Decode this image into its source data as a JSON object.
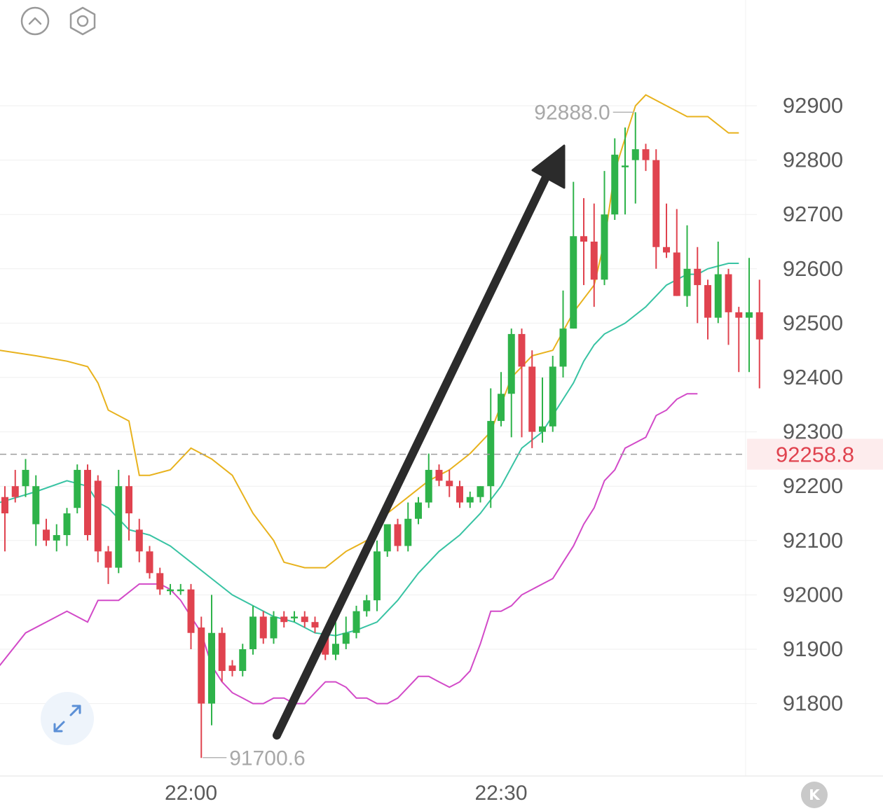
{
  "toolbar": {
    "icons": [
      "chevron-up-icon",
      "hexagon-settings-icon"
    ]
  },
  "expand": {
    "icon": "expand-arrows-icon"
  },
  "k_badge": {
    "label": "K"
  },
  "current_price_label": "92258.8",
  "colors": {
    "up": "#2eb34a",
    "down": "#e0434f",
    "upper_band": "#e8b21d",
    "middle_band": "#38c3a3",
    "lower_band": "#d24ac8",
    "current_price": "#e0434f",
    "axis_text": "#5a5a5a",
    "annotation_arrow": "#2b2b2b"
  },
  "chart_data": {
    "type": "candlestick",
    "y_axis_ticks": [
      "92900",
      "92800",
      "92700",
      "92600",
      "92500",
      "92400",
      "92300",
      "92200",
      "92100",
      "92000",
      "91900",
      "91800"
    ],
    "ylim": [
      91700,
      92900
    ],
    "x_axis_ticks": [
      {
        "label": "22:00",
        "index": 18
      },
      {
        "label": "22:30",
        "index": 48
      }
    ],
    "current_price": 92258.8,
    "high_marker": {
      "label": "92888.0",
      "value": 92888.0,
      "index": 61
    },
    "low_marker": {
      "label": "91700.6",
      "value": 91700.6,
      "index": 19
    },
    "candles": [
      [
        92180,
        92150,
        92200,
        92080
      ],
      [
        92200,
        92180,
        92230,
        92170
      ],
      [
        92200,
        92230,
        92250,
        92180
      ],
      [
        92130,
        92200,
        92220,
        92090
      ],
      [
        92120,
        92100,
        92140,
        92090
      ],
      [
        92100,
        92110,
        92130,
        92080
      ],
      [
        92110,
        92150,
        92160,
        92090
      ],
      [
        92160,
        92230,
        92240,
        92150
      ],
      [
        92230,
        92110,
        92240,
        92100
      ],
      [
        92210,
        92080,
        92220,
        92060
      ],
      [
        92080,
        92050,
        92090,
        92020
      ],
      [
        92050,
        92200,
        92230,
        92040
      ],
      [
        92200,
        92150,
        92220,
        92100
      ],
      [
        92120,
        92080,
        92140,
        92060
      ],
      [
        92080,
        92040,
        92090,
        92030
      ],
      [
        92040,
        92010,
        92050,
        92000
      ],
      [
        92010,
        92010,
        92020,
        92000
      ],
      [
        92010,
        92010,
        92020,
        92000
      ],
      [
        92010,
        91930,
        92020,
        91900
      ],
      [
        91940,
        91800,
        91960,
        91700
      ],
      [
        91800,
        91930,
        92000,
        91760
      ],
      [
        91930,
        91860,
        91940,
        91840
      ],
      [
        91870,
        91860,
        91880,
        91850
      ],
      [
        91860,
        91900,
        91910,
        91850
      ],
      [
        91900,
        91960,
        91980,
        91890
      ],
      [
        91960,
        91920,
        91970,
        91910
      ],
      [
        91920,
        91960,
        91970,
        91910
      ],
      [
        91960,
        91950,
        91970,
        91940
      ],
      [
        91960,
        91960,
        91970,
        91950
      ],
      [
        91960,
        91950,
        91970,
        91940
      ],
      [
        91950,
        91940,
        91960,
        91930
      ],
      [
        91930,
        91890,
        91940,
        91880
      ],
      [
        91890,
        91910,
        91950,
        91880
      ],
      [
        91910,
        91930,
        91960,
        91900
      ],
      [
        91930,
        91970,
        91980,
        91920
      ],
      [
        91970,
        91990,
        92000,
        91960
      ],
      [
        91990,
        92080,
        92100,
        91970
      ],
      [
        92080,
        92130,
        92130,
        92070
      ],
      [
        92130,
        92090,
        92140,
        92080
      ],
      [
        92090,
        92140,
        92170,
        92080
      ],
      [
        92140,
        92170,
        92180,
        92130
      ],
      [
        92170,
        92230,
        92260,
        92160
      ],
      [
        92230,
        92210,
        92240,
        92200
      ],
      [
        92210,
        92200,
        92230,
        92180
      ],
      [
        92200,
        92170,
        92210,
        92160
      ],
      [
        92170,
        92180,
        92190,
        92160
      ],
      [
        92180,
        92200,
        92200,
        92170
      ],
      [
        92200,
        92320,
        92380,
        92160
      ],
      [
        92320,
        92370,
        92410,
        92310
      ],
      [
        92370,
        92480,
        92490,
        92290
      ],
      [
        92480,
        92420,
        92490,
        92290
      ],
      [
        92420,
        92300,
        92450,
        92270
      ],
      [
        92300,
        92310,
        92400,
        92280
      ],
      [
        92310,
        92420,
        92440,
        92300
      ],
      [
        92420,
        92490,
        92560,
        92400
      ],
      [
        92490,
        92660,
        92760,
        92490
      ],
      [
        92660,
        92650,
        92730,
        92570
      ],
      [
        92650,
        92580,
        92720,
        92530
      ],
      [
        92580,
        92700,
        92780,
        92570
      ],
      [
        92700,
        92810,
        92840,
        92690
      ],
      [
        92790,
        92790,
        92860,
        92700
      ],
      [
        92800,
        92820,
        92888,
        92720
      ],
      [
        92820,
        92800,
        92830,
        92780
      ],
      [
        92800,
        92640,
        92820,
        92600
      ],
      [
        92640,
        92630,
        92720,
        92620
      ],
      [
        92630,
        92550,
        92710,
        92550
      ],
      [
        92550,
        92600,
        92680,
        92530
      ],
      [
        92600,
        92570,
        92640,
        92500
      ],
      [
        92570,
        92510,
        92580,
        92470
      ],
      [
        92510,
        92590,
        92650,
        92500
      ],
      [
        92590,
        92520,
        92600,
        92460
      ],
      [
        92520,
        92510,
        92530,
        92410
      ],
      [
        92510,
        92520,
        92620,
        92410
      ],
      [
        92520,
        92470,
        92580,
        92380
      ]
    ],
    "bands": {
      "upper": [
        [
          -0.5,
          92450
        ],
        [
          3,
          92440
        ],
        [
          6,
          92430
        ],
        [
          8,
          92420
        ],
        [
          9,
          92390
        ],
        [
          10,
          92340
        ],
        [
          12,
          92320
        ],
        [
          13,
          92220
        ],
        [
          14,
          92220
        ],
        [
          16,
          92230
        ],
        [
          18,
          92270
        ],
        [
          20,
          92250
        ],
        [
          22,
          92220
        ],
        [
          24,
          92150
        ],
        [
          26,
          92100
        ],
        [
          27,
          92060
        ],
        [
          29,
          92050
        ],
        [
          31,
          92050
        ],
        [
          33,
          92080
        ],
        [
          35,
          92100
        ],
        [
          37,
          92150
        ],
        [
          39,
          92180
        ],
        [
          41,
          92210
        ],
        [
          43,
          92230
        ],
        [
          45,
          92260
        ],
        [
          47,
          92300
        ],
        [
          49,
          92400
        ],
        [
          51,
          92440
        ],
        [
          53,
          92450
        ],
        [
          55,
          92520
        ],
        [
          57,
          92570
        ],
        [
          58,
          92650
        ],
        [
          59,
          92780
        ],
        [
          60,
          92840
        ],
        [
          61,
          92900
        ],
        [
          62,
          92920
        ],
        [
          64,
          92900
        ],
        [
          66,
          92880
        ],
        [
          68,
          92880
        ],
        [
          70,
          92850
        ],
        [
          71,
          92850
        ]
      ],
      "middle": [
        [
          -0.5,
          92170
        ],
        [
          3,
          92190
        ],
        [
          6,
          92210
        ],
        [
          8,
          92200
        ],
        [
          9,
          92170
        ],
        [
          10,
          92160
        ],
        [
          12,
          92120
        ],
        [
          14,
          92110
        ],
        [
          16,
          92090
        ],
        [
          18,
          92060
        ],
        [
          20,
          92030
        ],
        [
          22,
          92000
        ],
        [
          24,
          91980
        ],
        [
          26,
          91960
        ],
        [
          28,
          91950
        ],
        [
          30,
          91930
        ],
        [
          32,
          91925
        ],
        [
          34,
          91935
        ],
        [
          36,
          91950
        ],
        [
          38,
          91990
        ],
        [
          40,
          92040
        ],
        [
          42,
          92080
        ],
        [
          44,
          92110
        ],
        [
          46,
          92150
        ],
        [
          48,
          92200
        ],
        [
          50,
          92270
        ],
        [
          52,
          92300
        ],
        [
          54,
          92360
        ],
        [
          55,
          92390
        ],
        [
          56,
          92430
        ],
        [
          57,
          92460
        ],
        [
          58,
          92480
        ],
        [
          60,
          92500
        ],
        [
          62,
          92530
        ],
        [
          64,
          92570
        ],
        [
          66,
          92590
        ],
        [
          67,
          92590
        ],
        [
          68,
          92600
        ],
        [
          70,
          92610
        ],
        [
          71,
          92610
        ]
      ],
      "lower": [
        [
          -0.5,
          91870
        ],
        [
          2,
          91930
        ],
        [
          4,
          91950
        ],
        [
          6,
          91970
        ],
        [
          8,
          91950
        ],
        [
          9,
          91990
        ],
        [
          11,
          91990
        ],
        [
          13,
          92020
        ],
        [
          15,
          92020
        ],
        [
          16,
          92010
        ],
        [
          17,
          91990
        ],
        [
          19,
          91930
        ],
        [
          20,
          91870
        ],
        [
          21,
          91840
        ],
        [
          22,
          91820
        ],
        [
          23,
          91810
        ],
        [
          24,
          91800
        ],
        [
          25,
          91800
        ],
        [
          26,
          91810
        ],
        [
          27,
          91810
        ],
        [
          28,
          91800
        ],
        [
          29,
          91800
        ],
        [
          30,
          91820
        ],
        [
          31,
          91840
        ],
        [
          32,
          91840
        ],
        [
          33,
          91830
        ],
        [
          34,
          91810
        ],
        [
          35,
          91810
        ],
        [
          36,
          91800
        ],
        [
          37,
          91800
        ],
        [
          38,
          91810
        ],
        [
          39,
          91830
        ],
        [
          40,
          91850
        ],
        [
          41,
          91850
        ],
        [
          42,
          91840
        ],
        [
          43,
          91830
        ],
        [
          44,
          91840
        ],
        [
          45,
          91860
        ],
        [
          46,
          91910
        ],
        [
          47,
          91970
        ],
        [
          48,
          91970
        ],
        [
          49,
          91980
        ],
        [
          50,
          92000
        ],
        [
          51,
          92010
        ],
        [
          52,
          92020
        ],
        [
          53,
          92030
        ],
        [
          54,
          92060
        ],
        [
          55,
          92090
        ],
        [
          56,
          92130
        ],
        [
          57,
          92160
        ],
        [
          58,
          92210
        ],
        [
          59,
          92230
        ],
        [
          60,
          92270
        ],
        [
          61,
          92280
        ],
        [
          62,
          92290
        ],
        [
          63,
          92330
        ],
        [
          64,
          92340
        ],
        [
          65,
          92360
        ],
        [
          66,
          92370
        ],
        [
          67,
          92370
        ]
      ]
    }
  }
}
